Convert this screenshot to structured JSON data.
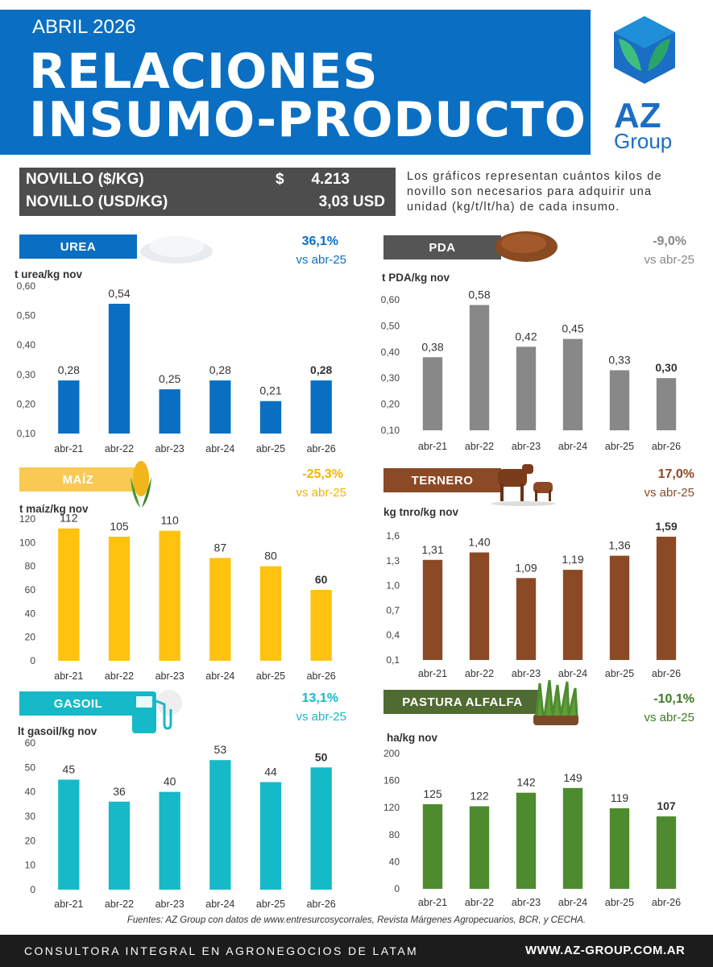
{
  "header": {
    "date": "ABRIL 2026",
    "title_line1": "RELACIONES",
    "title_line2": "INSUMO-PRODUCTO"
  },
  "logo": {
    "name": "AZ",
    "sub": "Group"
  },
  "prices": {
    "row1_label": "NOVILLO ($/KG)",
    "row1_currency": "$",
    "row1_value": "4.213",
    "row2_label": "NOVILLO (USD/KG)",
    "row2_value": "3,03 USD"
  },
  "note": "Los gráficos representan cuántos kilos de novillo son necesarios para adquirir una unidad (kg/t/lt/ha) de cada insumo.",
  "panels": [
    {
      "tag": "UREA",
      "pct": "36,1%",
      "vs": "vs abr-25",
      "unit": "t urea/kg nov",
      "color": "#0a6fc2",
      "tag_color": "#0a6fc2",
      "pct_color": "#0a6fc2",
      "vs_color": "#0a6fc2"
    },
    {
      "tag": "PDA",
      "pct": "-9,0%",
      "vs": "vs abr-25",
      "unit": "t PDA/kg nov",
      "color": "#888888",
      "tag_color": "#555555",
      "pct_color": "#888888",
      "vs_color": "#888888"
    },
    {
      "tag": "MAÍZ",
      "pct": "-25,3%",
      "vs": "vs abr-25",
      "unit": "t maíz/kg nov",
      "color": "#ffc20e",
      "tag_color": "#f8ca54",
      "pct_color": "#f5b400",
      "vs_color": "#f5b400"
    },
    {
      "tag": "TERNERO",
      "pct": "17,0%",
      "vs": "vs abr-25",
      "unit": "kg tnro/kg nov",
      "color": "#8b4a25",
      "tag_color": "#8b4a25",
      "pct_color": "#8b4a25",
      "vs_color": "#8b4a25"
    },
    {
      "tag": "GASOIL",
      "pct": "13,1%",
      "vs": "vs abr-25",
      "unit": "lt gasoil/kg nov",
      "color": "#16b9c8",
      "tag_color": "#16b9c8",
      "pct_color": "#16b9c8",
      "vs_color": "#16b9c8"
    },
    {
      "tag": "PASTURA ALFALFA",
      "pct": "-10,1%",
      "vs": "vs abr-25",
      "unit": "ha/kg nov",
      "color": "#4e8b2f",
      "tag_color": "#4f6b32",
      "pct_color": "#3d7a22",
      "vs_color": "#3d7a22"
    }
  ],
  "chart_data": [
    {
      "type": "bar",
      "categories": [
        "abr-21",
        "abr-22",
        "abr-23",
        "abr-24",
        "abr-25",
        "abr-26"
      ],
      "values": [
        0.28,
        0.54,
        0.25,
        0.28,
        0.21,
        0.28
      ],
      "value_labels": [
        "0,28",
        "0,54",
        "0,25",
        "0,28",
        "0,21",
        "0,28"
      ],
      "yticks": [
        "0,10",
        "0,20",
        "0,30",
        "0,40",
        "0,50",
        "0,60"
      ],
      "ylim": [
        0.1,
        0.6
      ],
      "ylabel": "t urea/kg nov",
      "title": "UREA",
      "grid": false
    },
    {
      "type": "bar",
      "categories": [
        "abr-21",
        "abr-22",
        "abr-23",
        "abr-24",
        "abr-25",
        "abr-26"
      ],
      "values": [
        0.38,
        0.58,
        0.42,
        0.45,
        0.33,
        0.3
      ],
      "value_labels": [
        "0,38",
        "0,58",
        "0,42",
        "0,45",
        "0,33",
        "0,30"
      ],
      "yticks": [
        "0,10",
        "0,20",
        "0,30",
        "0,40",
        "0,50",
        "0,60"
      ],
      "ylim": [
        0.1,
        0.6
      ],
      "ylabel": "t PDA/kg nov",
      "title": "PDA",
      "grid": false
    },
    {
      "type": "bar",
      "categories": [
        "abr-21",
        "abr-22",
        "abr-23",
        "abr-24",
        "abr-25",
        "abr-26"
      ],
      "values": [
        112,
        105,
        110,
        87,
        80,
        60
      ],
      "value_labels": [
        "112",
        "105",
        "110",
        "87",
        "80",
        "60"
      ],
      "yticks": [
        "0",
        "20",
        "40",
        "60",
        "80",
        "100",
        "120"
      ],
      "ylim": [
        0,
        120
      ],
      "ylabel": "t maíz/kg nov",
      "title": "MAÍZ",
      "grid": false
    },
    {
      "type": "bar",
      "categories": [
        "abr-21",
        "abr-22",
        "abr-23",
        "abr-24",
        "abr-25",
        "abr-26"
      ],
      "values": [
        1.31,
        1.4,
        1.09,
        1.19,
        1.36,
        1.59
      ],
      "value_labels": [
        "1,31",
        "1,40",
        "1,09",
        "1,19",
        "1,36",
        "1,59"
      ],
      "yticks": [
        "0,1",
        "0,4",
        "0,7",
        "1,0",
        "1,3",
        "1,6"
      ],
      "ylim": [
        0.1,
        1.6
      ],
      "ylabel": "kg tnro/kg nov",
      "title": "TERNERO",
      "grid": false
    },
    {
      "type": "bar",
      "categories": [
        "abr-21",
        "abr-22",
        "abr-23",
        "abr-24",
        "abr-25",
        "abr-26"
      ],
      "values": [
        45,
        36,
        40,
        53,
        44,
        50
      ],
      "value_labels": [
        "45",
        "36",
        "40",
        "53",
        "44",
        "50"
      ],
      "yticks": [
        "0",
        "10",
        "20",
        "30",
        "40",
        "50",
        "60"
      ],
      "ylim": [
        0,
        60
      ],
      "ylabel": "lt gasoil/kg nov",
      "title": "GASOIL",
      "grid": false
    },
    {
      "type": "bar",
      "categories": [
        "abr-21",
        "abr-22",
        "abr-23",
        "abr-24",
        "abr-25",
        "abr-26"
      ],
      "values": [
        125,
        122,
        142,
        149,
        119,
        107
      ],
      "value_labels": [
        "125",
        "122",
        "142",
        "149",
        "119",
        "107"
      ],
      "yticks": [
        "0",
        "40",
        "80",
        "120",
        "160",
        "200"
      ],
      "ylim": [
        0,
        200
      ],
      "ylabel": "ha/kg nov",
      "title": "PASTURA ALFALFA",
      "grid": false
    }
  ],
  "footer": {
    "sources": "Fuentes: AZ Group con datos de www.entresurcosycorrales, Revista Márgenes Agropecuarios, BCR, y CECHA.",
    "tagline": "CONSULTORA INTEGRAL EN AGRONEGOCIOS DE LATAM",
    "website": "WWW.AZ-GROUP.COM.AR"
  }
}
